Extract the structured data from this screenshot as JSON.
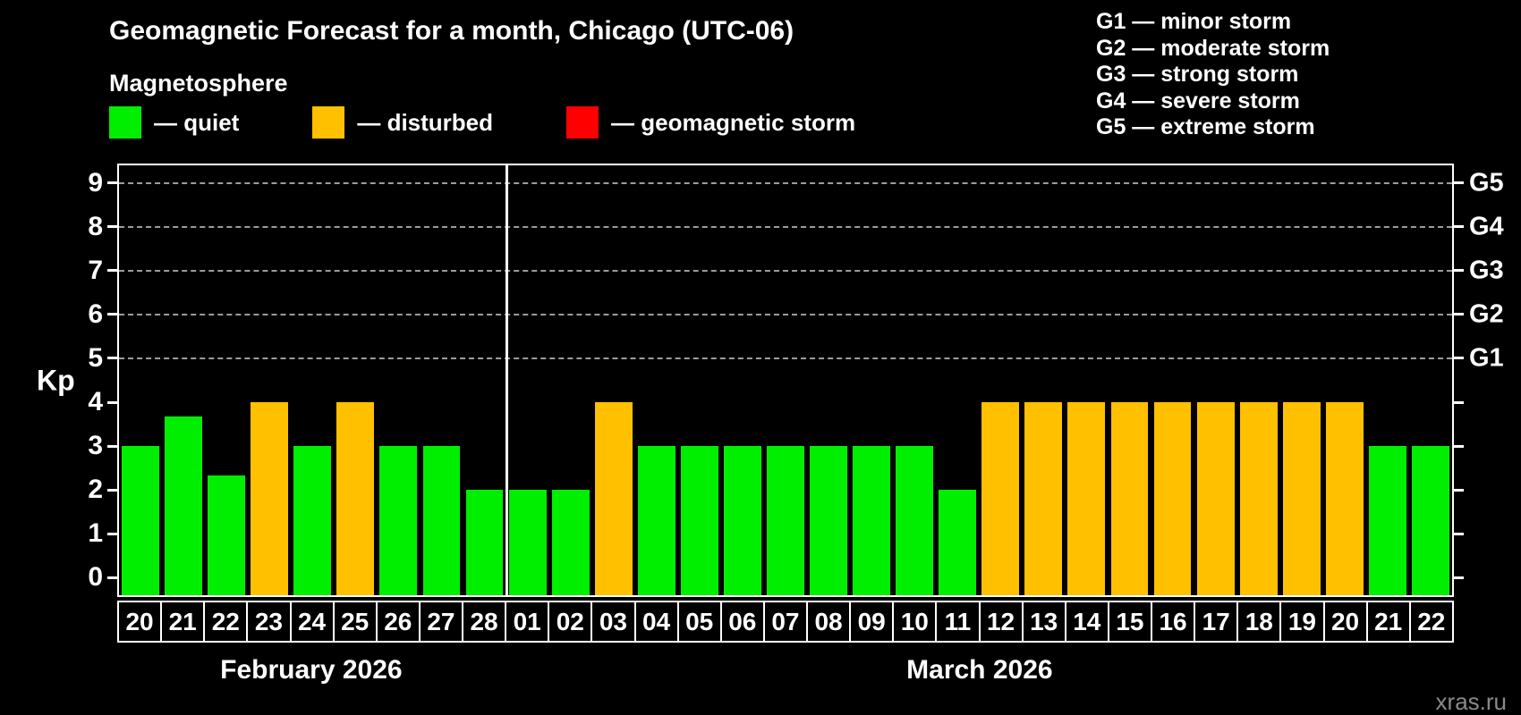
{
  "title": "Geomagnetic Forecast for a month, Chicago (UTC-06)",
  "subtitle": "Magnetosphere",
  "watermark": "xras.ru",
  "colors": {
    "quiet": "#00ee00",
    "disturbed": "#ffc000",
    "storm": "#ff0000",
    "background": "#000000",
    "axis": "#ffffff",
    "gridline": "#9c9c9c"
  },
  "legend": {
    "items": [
      {
        "key": "quiet",
        "label": "— quiet",
        "color": "#00ee00"
      },
      {
        "key": "disturbed",
        "label": "— disturbed",
        "color": "#ffc000"
      },
      {
        "key": "storm",
        "label": "— geomagnetic storm",
        "color": "#ff0000"
      }
    ]
  },
  "g_scale_legend": [
    "G1 — minor storm",
    "G2 — moderate storm",
    "G3 — strong storm",
    "G4 — severe storm",
    "G5 — extreme storm"
  ],
  "chart_data": {
    "type": "bar",
    "title": "Geomagnetic Forecast for a month, Chicago (UTC-06)",
    "ylabel": "Kp",
    "ylim": [
      -0.4,
      9.4
    ],
    "y_ticks": [
      0,
      1,
      2,
      3,
      4,
      5,
      6,
      7,
      8,
      9
    ],
    "gridlines_at": [
      5,
      6,
      7,
      8,
      9
    ],
    "grid": "dashed horizontal at storm levels only",
    "legend_position": "top-left",
    "right_axis": [
      {
        "kp": 5,
        "label": "G1"
      },
      {
        "kp": 6,
        "label": "G2"
      },
      {
        "kp": 7,
        "label": "G3"
      },
      {
        "kp": 8,
        "label": "G4"
      },
      {
        "kp": 9,
        "label": "G5"
      }
    ],
    "months": [
      {
        "label": "February 2026",
        "days": 9
      },
      {
        "label": "March 2026",
        "days": 22
      }
    ],
    "bars": [
      {
        "date": "20",
        "kp": 3,
        "state": "quiet"
      },
      {
        "date": "21",
        "kp": 3.67,
        "state": "quiet"
      },
      {
        "date": "22",
        "kp": 2.33,
        "state": "quiet"
      },
      {
        "date": "23",
        "kp": 4,
        "state": "disturbed"
      },
      {
        "date": "24",
        "kp": 3,
        "state": "quiet"
      },
      {
        "date": "25",
        "kp": 4,
        "state": "disturbed"
      },
      {
        "date": "26",
        "kp": 3,
        "state": "quiet"
      },
      {
        "date": "27",
        "kp": 3,
        "state": "quiet"
      },
      {
        "date": "28",
        "kp": 2,
        "state": "quiet"
      },
      {
        "date": "01",
        "kp": 2,
        "state": "quiet"
      },
      {
        "date": "02",
        "kp": 2,
        "state": "quiet"
      },
      {
        "date": "03",
        "kp": 4,
        "state": "disturbed"
      },
      {
        "date": "04",
        "kp": 3,
        "state": "quiet"
      },
      {
        "date": "05",
        "kp": 3,
        "state": "quiet"
      },
      {
        "date": "06",
        "kp": 3,
        "state": "quiet"
      },
      {
        "date": "07",
        "kp": 3,
        "state": "quiet"
      },
      {
        "date": "08",
        "kp": 3,
        "state": "quiet"
      },
      {
        "date": "09",
        "kp": 3,
        "state": "quiet"
      },
      {
        "date": "10",
        "kp": 3,
        "state": "quiet"
      },
      {
        "date": "11",
        "kp": 2,
        "state": "quiet"
      },
      {
        "date": "12",
        "kp": 4,
        "state": "disturbed"
      },
      {
        "date": "13",
        "kp": 4,
        "state": "disturbed"
      },
      {
        "date": "14",
        "kp": 4,
        "state": "disturbed"
      },
      {
        "date": "15",
        "kp": 4,
        "state": "disturbed"
      },
      {
        "date": "16",
        "kp": 4,
        "state": "disturbed"
      },
      {
        "date": "17",
        "kp": 4,
        "state": "disturbed"
      },
      {
        "date": "18",
        "kp": 4,
        "state": "disturbed"
      },
      {
        "date": "19",
        "kp": 4,
        "state": "disturbed"
      },
      {
        "date": "20",
        "kp": 4,
        "state": "disturbed"
      },
      {
        "date": "21",
        "kp": 3,
        "state": "quiet"
      },
      {
        "date": "22",
        "kp": 3,
        "state": "quiet"
      }
    ]
  }
}
